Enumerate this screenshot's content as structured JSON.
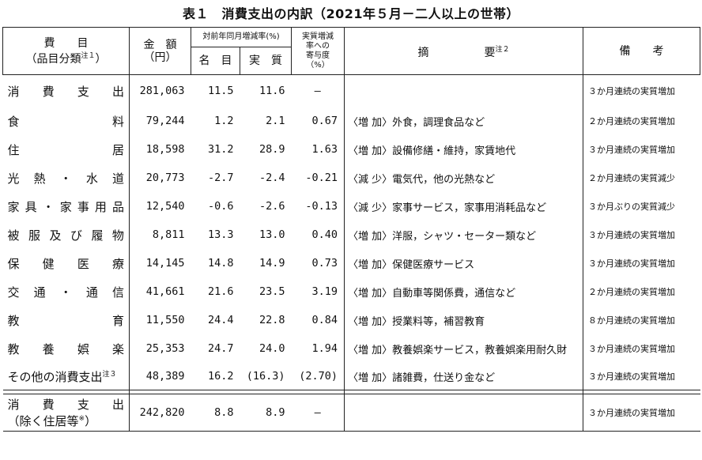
{
  "title": "表１　消費支出の内訳（2021年５月－二人以上の世帯）",
  "header": {
    "item": "費　　目",
    "item_sub": "（品目分類",
    "item_note": "注１",
    "item_close": "）",
    "amount": "金　額",
    "amount_unit": "（円）",
    "yoy": "対前年同月増減率(%)",
    "nominal": "名　目",
    "real": "実　質",
    "contrib_l1": "実質増減",
    "contrib_l2": "率への",
    "contrib_l3": "寄与度",
    "contrib_l4": "（%）",
    "summary": "摘　　　　　要",
    "summary_note": "注２",
    "remarks": "備　　考"
  },
  "rows": [
    {
      "item_chars": [
        "消",
        "費",
        "支",
        "出"
      ],
      "amount": "281,063",
      "nominal": "11.5",
      "real": "11.6",
      "contrib": "—",
      "summary": "",
      "remark": "３か月連続の実質増加"
    },
    {
      "item_chars": [
        "食",
        "料"
      ],
      "amount": "79,244",
      "nominal": "1.2",
      "real": "2.1",
      "contrib": "0.67",
      "summary": "〈増 加〉外食，調理食品など",
      "remark": "２か月連続の実質増加"
    },
    {
      "item_chars": [
        "住",
        "居"
      ],
      "amount": "18,598",
      "nominal": "31.2",
      "real": "28.9",
      "contrib": "1.63",
      "summary": "〈増 加〉設備修繕・維持，家賃地代",
      "remark": "３か月連続の実質増加"
    },
    {
      "item_chars": [
        "光",
        "熱",
        "・",
        "水",
        "道"
      ],
      "amount": "20,773",
      "nominal": "-2.7",
      "real": "-2.4",
      "contrib": "-0.21",
      "summary": "〈減 少〉電気代，他の光熱など",
      "remark": "２か月連続の実質減少"
    },
    {
      "item_chars": [
        "家",
        "具",
        "・",
        "家",
        "事",
        "用",
        "品"
      ],
      "amount": "12,540",
      "nominal": "-0.6",
      "real": "-2.6",
      "contrib": "-0.13",
      "summary": "〈減 少〉家事サービス，家事用消耗品など",
      "remark": "３か月ぶりの実質減少"
    },
    {
      "item_chars": [
        "被",
        "服",
        "及",
        "び",
        "履",
        "物"
      ],
      "amount": "8,811",
      "nominal": "13.3",
      "real": "13.0",
      "contrib": "0.40",
      "summary": "〈増 加〉洋服，シャツ・セーター類など",
      "remark": "３か月連続の実質増加"
    },
    {
      "item_chars": [
        "保",
        "健",
        "医",
        "療"
      ],
      "amount": "14,145",
      "nominal": "14.8",
      "real": "14.9",
      "contrib": "0.73",
      "summary": "〈増 加〉保健医療サービス",
      "remark": "３か月連続の実質増加"
    },
    {
      "item_chars": [
        "交",
        "通",
        "・",
        "通",
        "信"
      ],
      "amount": "41,661",
      "nominal": "21.6",
      "real": "23.5",
      "contrib": "3.19",
      "summary": "〈増 加〉自動車等関係費，通信など",
      "remark": "２か月連続の実質増加"
    },
    {
      "item_chars": [
        "教",
        "育"
      ],
      "amount": "11,550",
      "nominal": "24.4",
      "real": "22.8",
      "contrib": "0.84",
      "summary": "〈増 加〉授業料等，補習教育",
      "remark": "８か月連続の実質増加"
    },
    {
      "item_chars": [
        "教",
        "養",
        "娯",
        "楽"
      ],
      "amount": "25,353",
      "nominal": "24.7",
      "real": "24.0",
      "contrib": "1.94",
      "summary": "〈増 加〉教養娯楽サービス，教養娯楽用耐久財",
      "remark": "３か月連続の実質増加"
    },
    {
      "item_text": "その他の消費支出",
      "item_note": "注３",
      "amount": "48,389",
      "nominal": "16.2",
      "real": "(16.3)",
      "contrib": "(2.70)",
      "summary": "〈増 加〉諸雑費，仕送り金など",
      "remark": "３か月連続の実質増加"
    }
  ],
  "total": {
    "item_chars": [
      "消",
      "費",
      "支",
      "出"
    ],
    "item_sub": "（除く住居等",
    "item_note": "※",
    "item_close": "）",
    "amount": "242,820",
    "nominal": "8.8",
    "real": "8.9",
    "contrib": "—",
    "summary": "",
    "remark": "３か月連続の実質増加"
  }
}
